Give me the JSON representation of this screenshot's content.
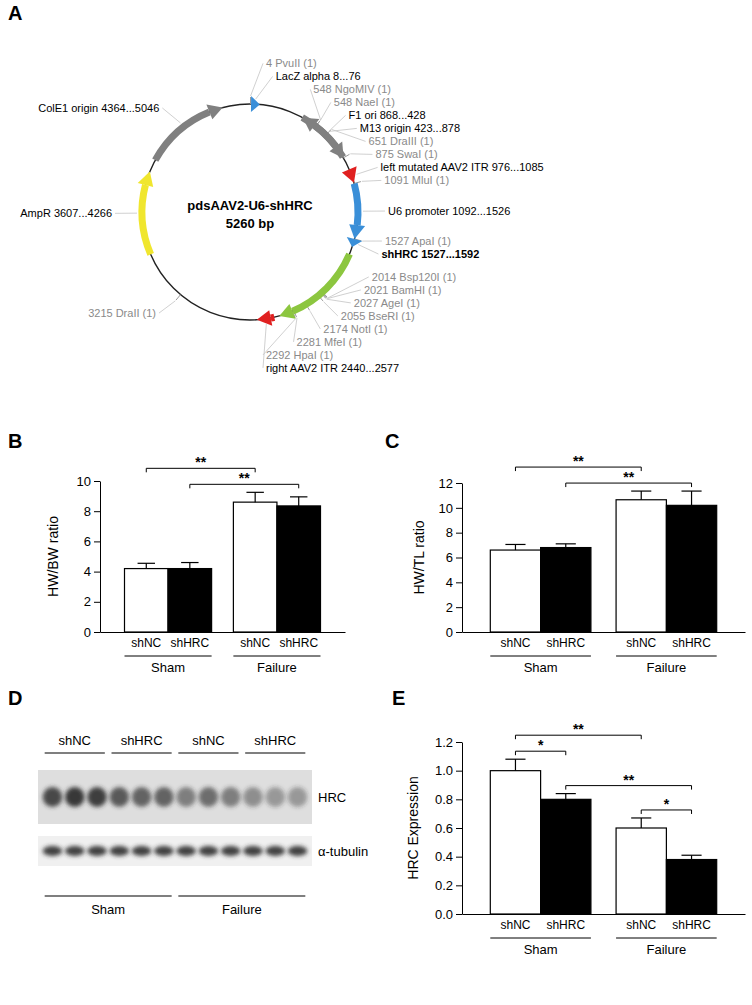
{
  "plasmid_map": {
    "title": "A",
    "name": "pdsAAV2-U6-shHRC",
    "size_label": "5260 bp",
    "length": 5260,
    "features": [
      {
        "label": "LacZ alpha 8...76",
        "start": 8,
        "end": 76,
        "color": "#3a8fd8"
      },
      {
        "label": "M13 origin 423...878",
        "start": 423,
        "end": 878,
        "color": "#808080"
      },
      {
        "label": "F1 ori 868...428",
        "start": 868,
        "end": 428,
        "color": "#808080"
      },
      {
        "label": "left mutated AAV2 ITR 976...1085",
        "start": 976,
        "end": 1085,
        "color": "#e02020"
      },
      {
        "label": "U6 promoter 1092...1526",
        "start": 1092,
        "end": 1526,
        "color": "#3a8fd8"
      },
      {
        "label": "shHRC 1527...1592",
        "start": 1527,
        "end": 1592,
        "color": "#3a8fd8",
        "bold": true
      },
      {
        "start": 1650,
        "end": 2400,
        "color": "#8cc63f"
      },
      {
        "label": "right AAV2 ITR 2440...2577",
        "start": 2440,
        "end": 2577,
        "color": "#e02020"
      },
      {
        "label": "AmpR 3607...4266",
        "start": 3607,
        "end": 4266,
        "color": "#f0e62e"
      },
      {
        "label": "ColE1 origin 4364...5046",
        "start": 4364,
        "end": 5046,
        "color": "#808080"
      }
    ],
    "sites": [
      {
        "label": "4 PvuII (1)",
        "position": 4
      },
      {
        "label": "548 NgoMIV (1)",
        "position": 548
      },
      {
        "label": "548 NaeI (1)",
        "position": 548
      },
      {
        "label": "651 DraIII (1)",
        "position": 651
      },
      {
        "label": "875 SwaI (1)",
        "position": 875
      },
      {
        "label": "1091 MluI (1)",
        "position": 1091
      },
      {
        "label": "1527 ApaI (1)",
        "position": 1527
      },
      {
        "label": "2014 Bsp120I (1)",
        "position": 2014
      },
      {
        "label": "2021 BamHI (1)",
        "position": 2021
      },
      {
        "label": "2027 AgeI (1)",
        "position": 2027
      },
      {
        "label": "2055 BseRI (1)",
        "position": 2055
      },
      {
        "label": "2174 NotI (1)",
        "position": 2174
      },
      {
        "label": "2281 MfeI (1)",
        "position": 2281
      },
      {
        "label": "2292 HpaI (1)",
        "position": 2292
      },
      {
        "label": "3215 DraII (1)",
        "position": 3215
      }
    ]
  },
  "chart_data": [
    {
      "type": "bar",
      "title": "B",
      "y_label": "HW/BW ratio",
      "categories": [
        "shNC",
        "shHRC",
        "shNC",
        "shHRC"
      ],
      "values": [
        4.2,
        4.2,
        8.6,
        8.35
      ],
      "errors": [
        0.35,
        0.4,
        0.65,
        0.6
      ],
      "colors": [
        "#ffffff",
        "#000000",
        "#ffffff",
        "#000000"
      ],
      "ylim": [
        0,
        10
      ],
      "yticks": [
        0,
        2,
        4,
        6,
        8,
        10
      ],
      "groups": [
        {
          "label": "Sham",
          "from": 0,
          "to": 1
        },
        {
          "label": "Failure",
          "from": 2,
          "to": 3
        }
      ],
      "significance": [
        {
          "from": 1,
          "to": 3,
          "label": "**"
        },
        {
          "from": 0,
          "to": 2,
          "label": "**"
        }
      ]
    },
    {
      "type": "bar",
      "title": "C",
      "y_label": "HW/TL ratio",
      "categories": [
        "shNC",
        "shHRC",
        "shNC",
        "shHRC"
      ],
      "values": [
        6.6,
        6.8,
        10.65,
        10.2
      ],
      "errors": [
        0.45,
        0.3,
        0.7,
        1.15
      ],
      "colors": [
        "#ffffff",
        "#000000",
        "#ffffff",
        "#000000"
      ],
      "ylim": [
        0,
        12
      ],
      "yticks": [
        0,
        2,
        4,
        6,
        8,
        10,
        12
      ],
      "groups": [
        {
          "label": "Sham",
          "from": 0,
          "to": 1
        },
        {
          "label": "Failure",
          "from": 2,
          "to": 3
        }
      ],
      "significance": [
        {
          "from": 1,
          "to": 3,
          "label": "**"
        },
        {
          "from": 0,
          "to": 2,
          "label": "**"
        }
      ]
    },
    {
      "type": "bar",
      "title": "E",
      "y_label": "HRC Expression",
      "categories": [
        "shNC",
        "shHRC",
        "shNC",
        "shHRC"
      ],
      "values": [
        1.0,
        0.8,
        0.6,
        0.38
      ],
      "errors": [
        0.08,
        0.04,
        0.07,
        0.03
      ],
      "colors": [
        "#ffffff",
        "#000000",
        "#ffffff",
        "#000000"
      ],
      "ylim": [
        0,
        1.2
      ],
      "yticks": [
        {
          "value": 0,
          "label": "0.0"
        },
        0.2,
        0.4,
        0.6,
        0.8,
        {
          "value": 1,
          "label": "1.0"
        },
        1.2
      ],
      "groups": [
        {
          "label": "Sham",
          "from": 0,
          "to": 1
        },
        {
          "label": "Failure",
          "from": 2,
          "to": 3
        }
      ],
      "significance": [
        {
          "from": 0,
          "to": 1,
          "label": "*"
        },
        {
          "from": 0,
          "to": 2,
          "label": "**"
        },
        {
          "from": 2,
          "to": 3,
          "label": "*"
        },
        {
          "from": 1,
          "to": 3,
          "label": "**"
        }
      ]
    }
  ],
  "western_blot": {
    "title": "D",
    "lane_labels": [
      "shNC",
      "shHRC",
      "shNC",
      "shHRC"
    ],
    "group_labels": [
      "Sham",
      "Failure"
    ],
    "rows": [
      {
        "label": "HRC",
        "intensities": [
          0.85,
          0.95,
          0.9,
          0.75,
          0.7,
          0.7,
          0.55,
          0.65,
          0.55,
          0.45,
          0.4,
          0.4
        ]
      },
      {
        "label": "α-tubulin",
        "intensities": [
          0.9,
          0.9,
          0.9,
          0.9,
          0.9,
          0.9,
          0.9,
          0.9,
          0.9,
          0.9,
          0.9,
          0.9
        ]
      }
    ]
  }
}
